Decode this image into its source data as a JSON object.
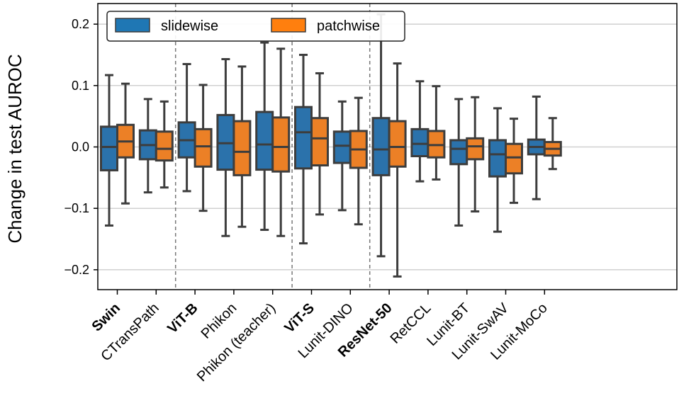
{
  "chart_data": {
    "type": "boxplot",
    "ylabel": "Change in test AUROC",
    "ylim": [
      -0.235,
      0.235
    ],
    "yticks": [
      0.2,
      0.1,
      0.0,
      -0.1,
      -0.2
    ],
    "ytick_labels": [
      "0.2",
      "0.1",
      "0.0",
      "−0.1",
      "−0.2"
    ],
    "grid": "horizontal",
    "legend": {
      "placement": "top-left",
      "entries": [
        {
          "name": "slidewise",
          "color": "#1f77b4"
        },
        {
          "name": "patchwise",
          "color": "#ff7f0e"
        }
      ]
    },
    "colors": {
      "slidewise": "#2b72ab",
      "patchwise": "#ec8026",
      "edge": "#3d3d3d",
      "grid": "#d0d0d0",
      "separator": "#777777"
    },
    "groups_bold": [
      "Swin",
      "ViT-B",
      "ViT-S",
      "ResNet-50"
    ],
    "categories": [
      "Swin",
      "CTransPath",
      "ViT-B",
      "Phikon",
      "Phikon (teacher)",
      "ViT-S",
      "Lunit-DINO",
      "ResNet-50",
      "RetCCL",
      "Lunit-BT",
      "Lunit-SwAV",
      "Lunit-MoCo"
    ],
    "separators_after": [
      1,
      4,
      6
    ],
    "series": [
      {
        "name": "slidewise",
        "boxes": [
          {
            "whislo": -0.128,
            "q1": -0.038,
            "med": 0.0,
            "q3": 0.033,
            "whishi": 0.117
          },
          {
            "whislo": -0.074,
            "q1": -0.02,
            "med": 0.003,
            "q3": 0.027,
            "whishi": 0.078
          },
          {
            "whislo": -0.072,
            "q1": -0.017,
            "med": 0.011,
            "q3": 0.04,
            "whishi": 0.135
          },
          {
            "whislo": -0.145,
            "q1": -0.037,
            "med": 0.006,
            "q3": 0.052,
            "whishi": 0.143
          },
          {
            "whislo": -0.135,
            "q1": -0.037,
            "med": 0.004,
            "q3": 0.057,
            "whishi": 0.17
          },
          {
            "whislo": -0.157,
            "q1": -0.035,
            "med": 0.024,
            "q3": 0.065,
            "whishi": 0.15
          },
          {
            "whislo": -0.103,
            "q1": -0.026,
            "med": 0.002,
            "q3": 0.025,
            "whishi": 0.074
          },
          {
            "whislo": -0.178,
            "q1": -0.046,
            "med": -0.004,
            "q3": 0.047,
            "whishi": 0.216
          },
          {
            "whislo": -0.056,
            "q1": -0.015,
            "med": 0.005,
            "q3": 0.029,
            "whishi": 0.107
          },
          {
            "whislo": -0.128,
            "q1": -0.028,
            "med": -0.003,
            "q3": 0.011,
            "whishi": 0.078
          },
          {
            "whislo": -0.138,
            "q1": -0.048,
            "med": -0.012,
            "q3": 0.011,
            "whishi": 0.063
          },
          {
            "whislo": -0.085,
            "q1": -0.012,
            "med": 0.0,
            "q3": 0.012,
            "whishi": 0.082
          }
        ]
      },
      {
        "name": "patchwise",
        "boxes": [
          {
            "whislo": -0.092,
            "q1": -0.017,
            "med": 0.009,
            "q3": 0.036,
            "whishi": 0.103
          },
          {
            "whislo": -0.066,
            "q1": -0.022,
            "med": -0.003,
            "q3": 0.025,
            "whishi": 0.074
          },
          {
            "whislo": -0.104,
            "q1": -0.032,
            "med": 0.001,
            "q3": 0.029,
            "whishi": 0.101
          },
          {
            "whislo": -0.13,
            "q1": -0.046,
            "med": -0.008,
            "q3": 0.042,
            "whishi": 0.131
          },
          {
            "whislo": -0.145,
            "q1": -0.04,
            "med": 0.0,
            "q3": 0.048,
            "whishi": 0.16
          },
          {
            "whislo": -0.11,
            "q1": -0.03,
            "med": 0.014,
            "q3": 0.047,
            "whishi": 0.12
          },
          {
            "whislo": -0.126,
            "q1": -0.034,
            "med": -0.004,
            "q3": 0.026,
            "whishi": 0.08
          },
          {
            "whislo": -0.211,
            "q1": -0.032,
            "med": 0.0,
            "q3": 0.042,
            "whishi": 0.136
          },
          {
            "whislo": -0.053,
            "q1": -0.017,
            "med": 0.003,
            "q3": 0.026,
            "whishi": 0.099
          },
          {
            "whislo": -0.105,
            "q1": -0.02,
            "med": 0.001,
            "q3": 0.014,
            "whishi": 0.081
          },
          {
            "whislo": -0.091,
            "q1": -0.043,
            "med": -0.017,
            "q3": 0.005,
            "whishi": 0.046
          },
          {
            "whislo": -0.036,
            "q1": -0.014,
            "med": -0.003,
            "q3": 0.008,
            "whishi": 0.047
          }
        ]
      }
    ]
  }
}
